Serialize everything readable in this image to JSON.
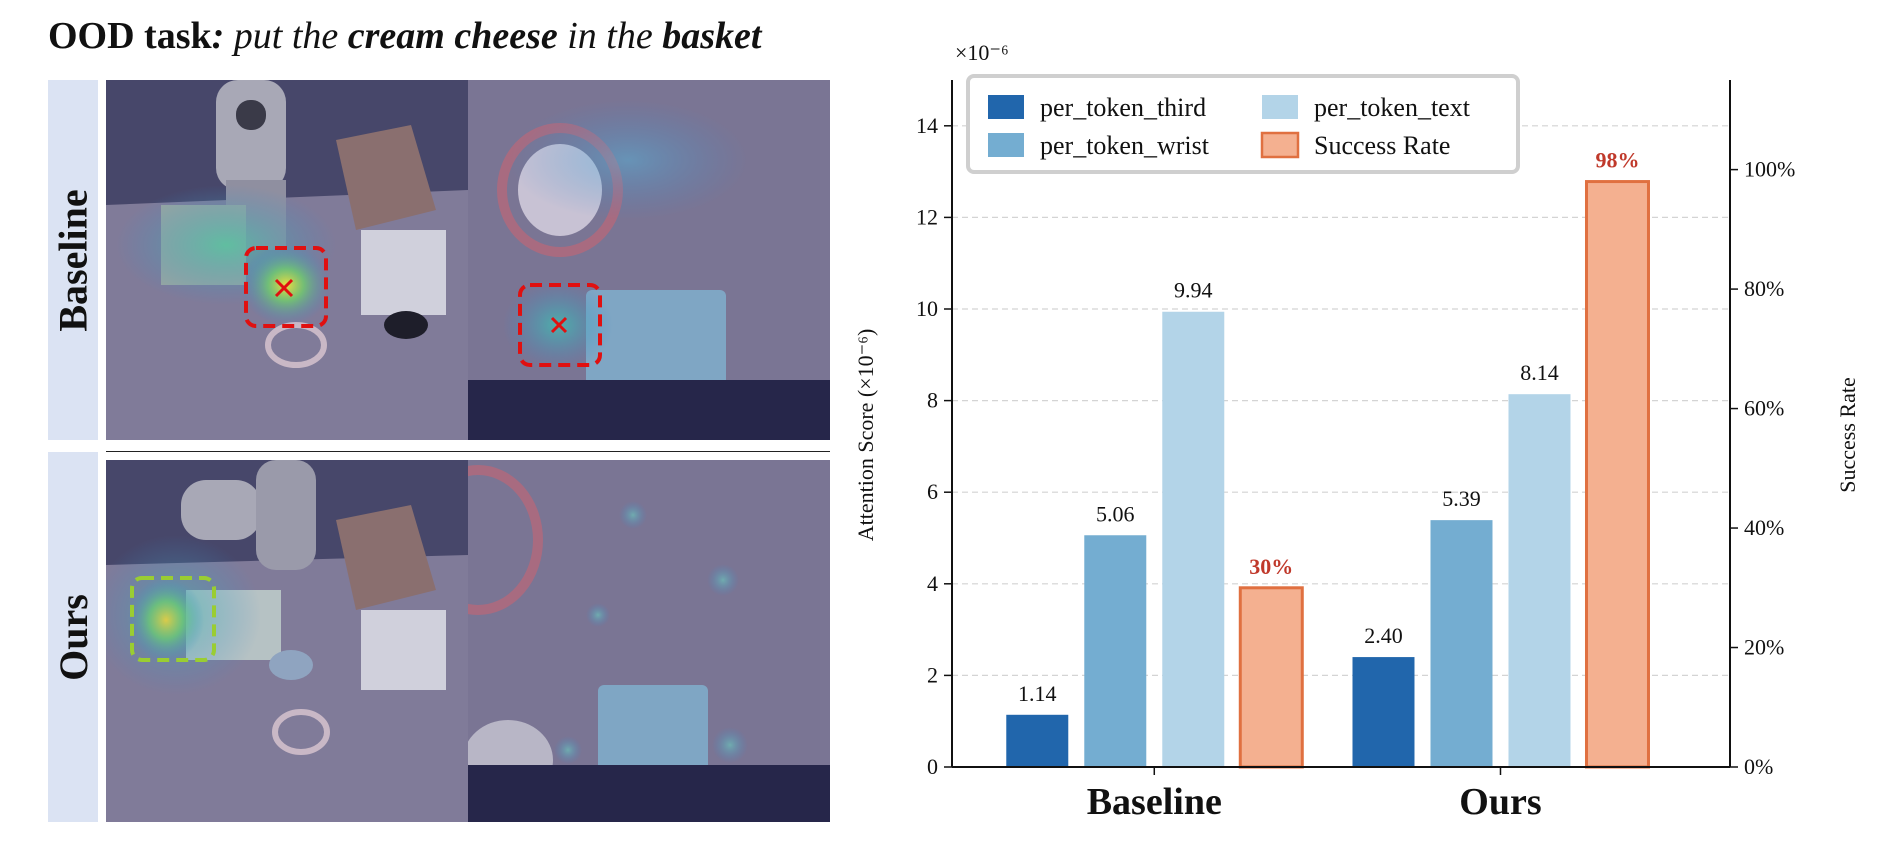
{
  "figure": {
    "title_prefix": "OOD task",
    "title_colon": ":",
    "title_parts": [
      "put the",
      "cream cheese",
      "in the",
      "basket"
    ],
    "row_labels": [
      "Baseline",
      "Ours"
    ]
  },
  "chart_data": {
    "type": "bar",
    "categories": [
      "Baseline",
      "Ours"
    ],
    "series": [
      {
        "name": "per_token_third",
        "values": [
          1.14,
          2.4
        ],
        "color": "#2166ac",
        "axis": "left"
      },
      {
        "name": "per_token_wrist",
        "values": [
          5.06,
          5.39
        ],
        "color": "#74add1",
        "axis": "left"
      },
      {
        "name": "per_token_text",
        "values": [
          9.94,
          8.14
        ],
        "color": "#b3d4e8",
        "axis": "left"
      },
      {
        "name": "Success Rate",
        "values": [
          30,
          98
        ],
        "color": "#f4b090",
        "edge": "#e07040",
        "axis": "right"
      }
    ],
    "value_labels": [
      [
        "1.14",
        "5.06",
        "9.94",
        "30%"
      ],
      [
        "2.40",
        "5.39",
        "8.14",
        "98%"
      ]
    ],
    "ylabel": "Attention Score (×10⁻⁶)",
    "y_exponent": "×10⁻⁶",
    "ylim": [
      0,
      15
    ],
    "yticks": [
      0,
      2,
      4,
      6,
      8,
      10,
      12,
      14
    ],
    "y2label": "Success Rate",
    "y2lim": [
      0,
      115
    ],
    "y2ticks": [
      "0%",
      "20%",
      "40%",
      "60%",
      "80%",
      "100%"
    ],
    "y2tick_values": [
      0,
      20,
      40,
      60,
      80,
      100
    ],
    "grid": "horizontal dashed",
    "legend_position": "top-left"
  }
}
